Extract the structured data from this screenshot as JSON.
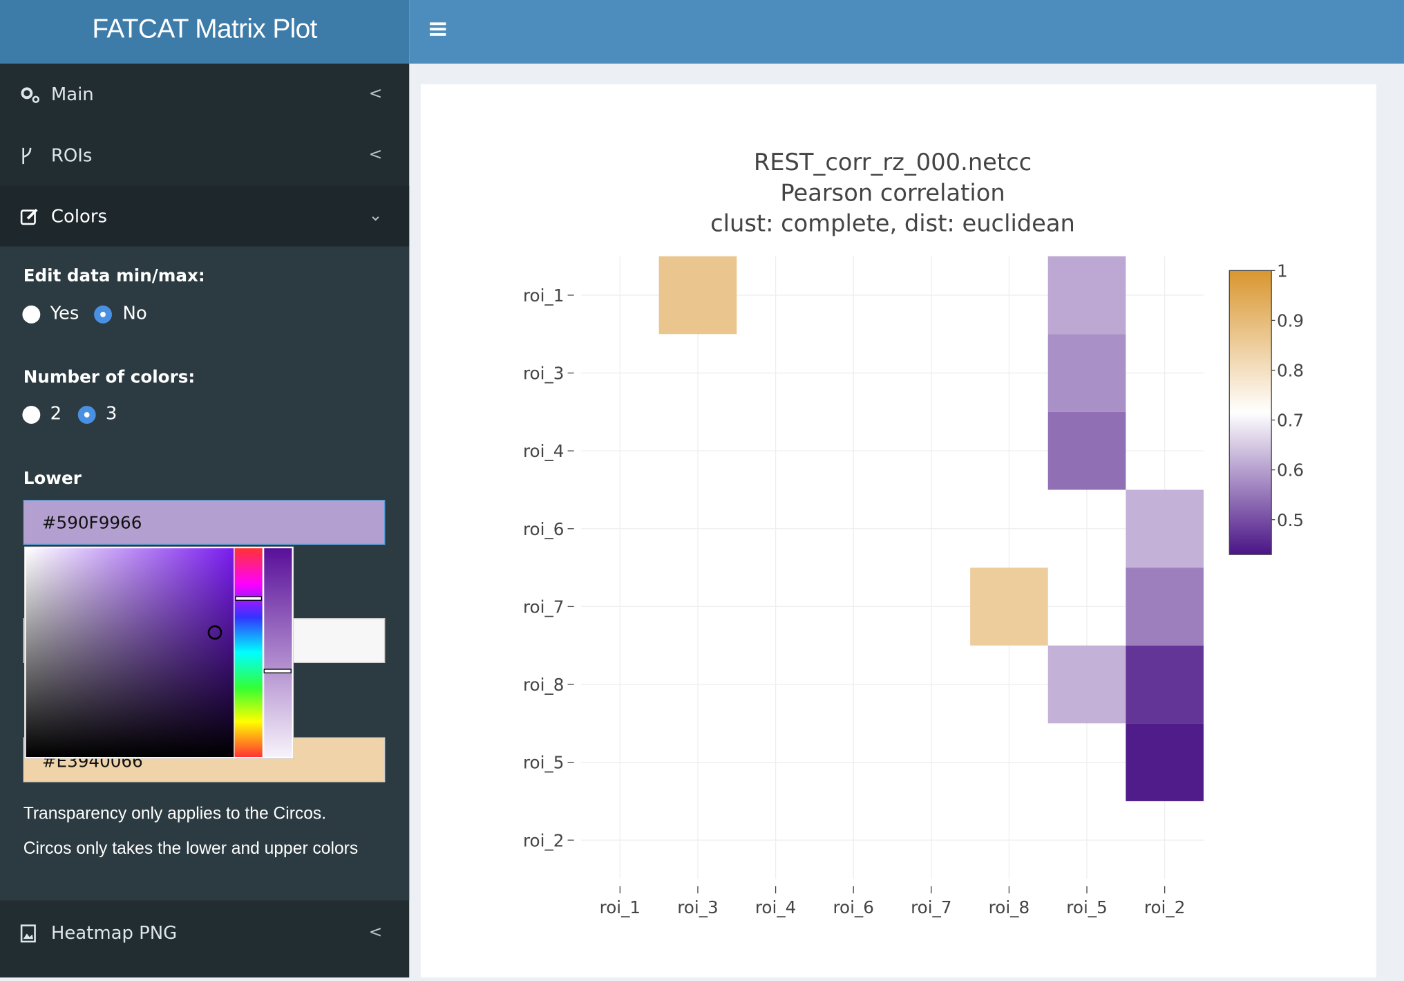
{
  "header": {
    "title": "FATCAT Matrix Plot"
  },
  "sidebar": {
    "menu": [
      "Main",
      "ROIs",
      "Colors"
    ],
    "bottom_menu": "Heatmap PNG"
  },
  "form": {
    "minmax": {
      "label": "Edit data min/max:",
      "options": [
        "Yes",
        "No"
      ]
    },
    "ncolors": {
      "label": "Number of colors:",
      "options": [
        "2",
        "3"
      ]
    },
    "lower": {
      "label": "Lower",
      "value": "#590F9966"
    },
    "upper": {
      "value": "#E3940066"
    },
    "notes": [
      "Transparency only applies to the Circos.",
      "Circos only takes the lower and upper colors"
    ]
  },
  "chart_data": {
    "type": "heatmap",
    "title_lines": [
      "REST_corr_rz_000.netcc",
      "Pearson correlation",
      "clust: complete, dist: euclidean"
    ],
    "x": [
      "roi_1",
      "roi_3",
      "roi_4",
      "roi_6",
      "roi_7",
      "roi_8",
      "roi_5",
      "roi_2"
    ],
    "y": [
      "roi_1",
      "roi_3",
      "roi_4",
      "roi_6",
      "roi_7",
      "roi_8",
      "roi_5",
      "roi_2"
    ],
    "z": [
      [
        null,
        0.87,
        null,
        null,
        null,
        null,
        0.61,
        null
      ],
      [
        null,
        null,
        null,
        null,
        null,
        null,
        0.58,
        null
      ],
      [
        null,
        null,
        null,
        null,
        null,
        null,
        0.54,
        null
      ],
      [
        null,
        null,
        null,
        null,
        null,
        null,
        null,
        0.62
      ],
      [
        null,
        null,
        null,
        null,
        null,
        0.85,
        null,
        0.56
      ],
      [
        null,
        null,
        null,
        null,
        null,
        null,
        0.62,
        0.47
      ],
      [
        null,
        null,
        null,
        null,
        null,
        null,
        null,
        0.44
      ],
      [
        null,
        null,
        null,
        null,
        null,
        null,
        null,
        null
      ]
    ],
    "zlim": [
      0.43,
      1
    ],
    "zticks": [
      0.5,
      0.6,
      0.7,
      0.8,
      0.9,
      1
    ],
    "colorscale": [
      "#4a1486",
      "#ffffff",
      "#d9962f"
    ],
    "grid": true
  }
}
